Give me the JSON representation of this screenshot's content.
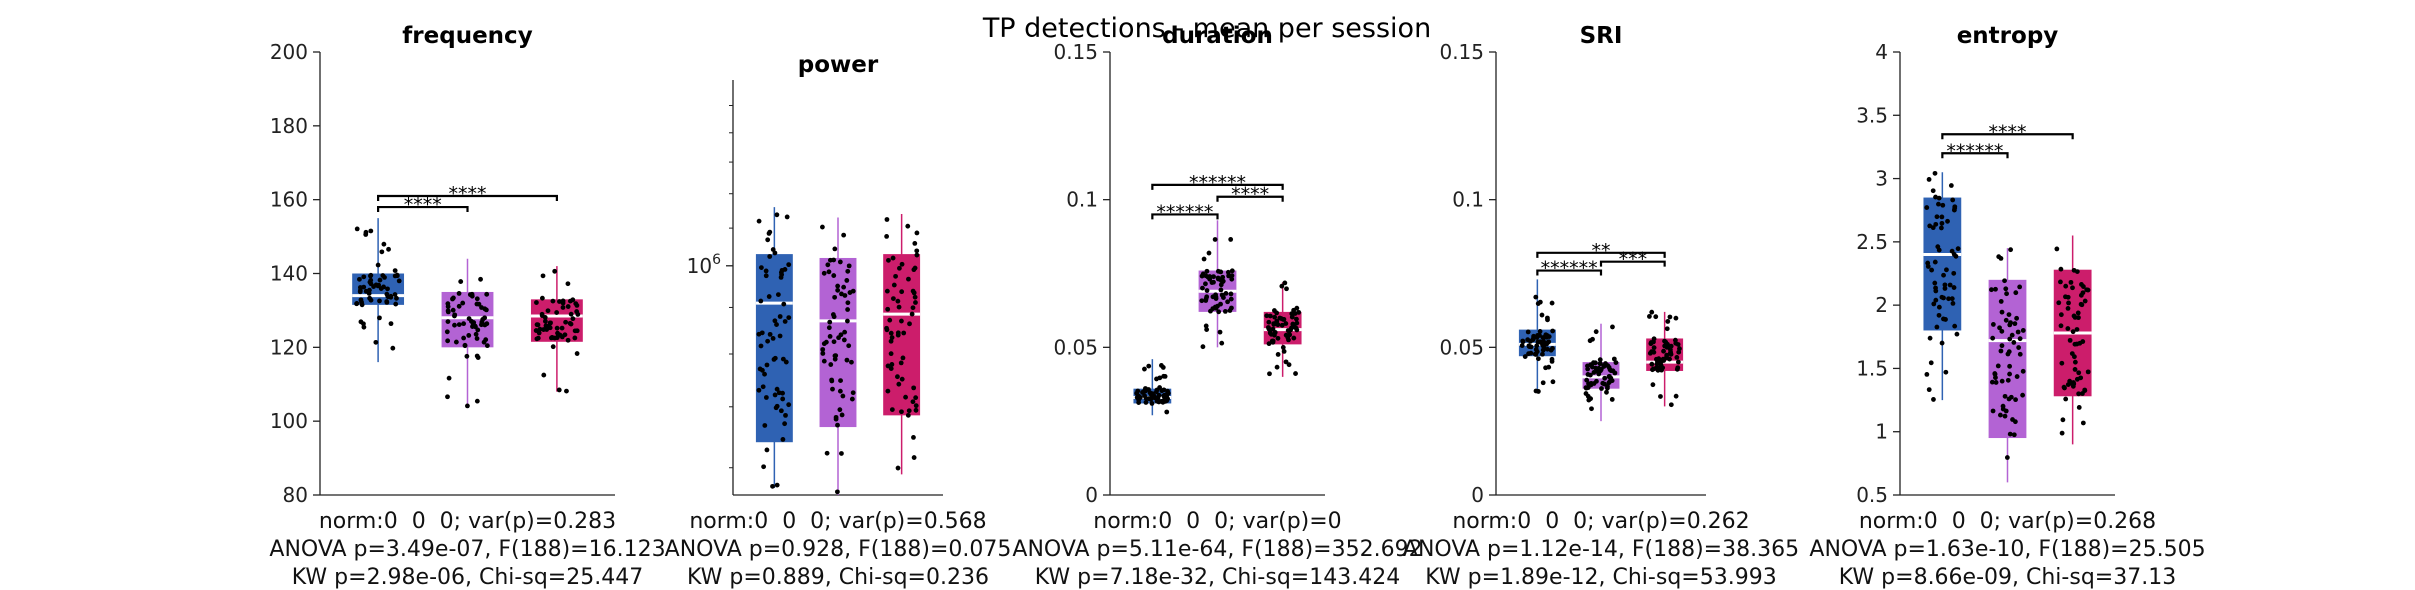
{
  "figure_title": "TP detections - mean per session",
  "colors": {
    "group1": "#2f62b3",
    "group2": "#b363d4",
    "group3": "#cc1d6b",
    "points": "#000000",
    "median": "#ffffff"
  },
  "chart_data": [
    {
      "type": "box",
      "title": "frequency",
      "ylim": [
        80,
        200
      ],
      "yticks": [
        80,
        100,
        120,
        140,
        160,
        180,
        200
      ],
      "ytick_labels": [
        "80",
        "100",
        "120",
        "140",
        "160",
        "180",
        "200"
      ],
      "log_scale": false,
      "groups": [
        {
          "q1": 131.5,
          "median": 134,
          "q3": 140,
          "whisker_low": 116,
          "whisker_high": 155,
          "points_range": [
            116,
            155
          ]
        },
        {
          "q1": 120,
          "median": 128,
          "q3": 135,
          "whisker_low": 104,
          "whisker_high": 144,
          "points_range": [
            104,
            144
          ]
        },
        {
          "q1": 121.5,
          "median": 128.5,
          "q3": 133,
          "whisker_low": 108,
          "whisker_high": 142,
          "points_range": [
            108,
            142
          ]
        }
      ],
      "significance": [
        {
          "from": 0,
          "to": 1,
          "label": "****",
          "y": 158
        },
        {
          "from": 0,
          "to": 2,
          "label": "****",
          "y": 161
        }
      ],
      "stats": [
        "norm:0  0  0; var(p)=0.283",
        "ANOVA p=3.49e-07, F(188)=16.123",
        "KW p=2.98e-06, Chi-sq=25.447"
      ]
    },
    {
      "type": "box",
      "title": "power",
      "ylim": [
        560000,
        1600000
      ],
      "yticks": [
        1000000
      ],
      "ytick_labels": [
        "10^6"
      ],
      "log_scale": true,
      "groups": [
        {
          "q1": 640000,
          "median": 910000,
          "q3": 1030000,
          "whisker_low": 570000,
          "whisker_high": 1160000,
          "points_range": [
            570000,
            1160000
          ]
        },
        {
          "q1": 665000,
          "median": 870000,
          "q3": 1020000,
          "whisker_low": 560000,
          "whisker_high": 1130000,
          "points_range": [
            560000,
            1130000
          ]
        },
        {
          "q1": 685000,
          "median": 885000,
          "q3": 1030000,
          "whisker_low": 590000,
          "whisker_high": 1140000,
          "points_range": [
            590000,
            1140000
          ]
        }
      ],
      "significance": [],
      "stats": [
        "norm:0  0  0; var(p)=0.568",
        "ANOVA p=0.928, F(188)=0.075",
        "KW p=0.889, Chi-sq=0.236"
      ]
    },
    {
      "type": "box",
      "title": "duration",
      "ylim": [
        0,
        0.15
      ],
      "yticks": [
        0,
        0.05,
        0.1,
        0.15
      ],
      "ytick_labels": [
        "0",
        "0.05",
        "0.1",
        "0.15"
      ],
      "log_scale": false,
      "groups": [
        {
          "q1": 0.031,
          "median": 0.033,
          "q3": 0.036,
          "whisker_low": 0.027,
          "whisker_high": 0.046,
          "points_range": [
            0.027,
            0.046
          ]
        },
        {
          "q1": 0.062,
          "median": 0.069,
          "q3": 0.076,
          "whisker_low": 0.05,
          "whisker_high": 0.093,
          "points_range": [
            0.05,
            0.093
          ]
        },
        {
          "q1": 0.051,
          "median": 0.056,
          "q3": 0.062,
          "whisker_low": 0.04,
          "whisker_high": 0.072,
          "points_range": [
            0.04,
            0.072
          ]
        }
      ],
      "significance": [
        {
          "from": 0,
          "to": 1,
          "label": "******",
          "y": 0.095
        },
        {
          "from": 1,
          "to": 2,
          "label": "****",
          "y": 0.101
        },
        {
          "from": 0,
          "to": 2,
          "label": "******",
          "y": 0.105
        }
      ],
      "stats": [
        "norm:0  0  0; var(p)=0",
        "ANOVA p=5.11e-64, F(188)=352.692",
        "KW p=7.18e-32, Chi-sq=143.424"
      ]
    },
    {
      "type": "box",
      "title": "SRI",
      "ylim": [
        0,
        0.15
      ],
      "yticks": [
        0,
        0.05,
        0.1,
        0.15
      ],
      "ytick_labels": [
        "0",
        "0.05",
        "0.1",
        "0.15"
      ],
      "log_scale": false,
      "groups": [
        {
          "q1": 0.047,
          "median": 0.051,
          "q3": 0.056,
          "whisker_low": 0.035,
          "whisker_high": 0.073,
          "points_range": [
            0.035,
            0.073
          ]
        },
        {
          "q1": 0.036,
          "median": 0.04,
          "q3": 0.045,
          "whisker_low": 0.025,
          "whisker_high": 0.058,
          "points_range": [
            0.025,
            0.058
          ]
        },
        {
          "q1": 0.042,
          "median": 0.045,
          "q3": 0.053,
          "whisker_low": 0.03,
          "whisker_high": 0.062,
          "points_range": [
            0.03,
            0.062
          ]
        }
      ],
      "significance": [
        {
          "from": 0,
          "to": 1,
          "label": "******",
          "y": 0.076
        },
        {
          "from": 1,
          "to": 2,
          "label": "***",
          "y": 0.079
        },
        {
          "from": 0,
          "to": 2,
          "label": "**",
          "y": 0.082
        }
      ],
      "stats": [
        "norm:0  0  0; var(p)=0.262",
        "ANOVA p=1.12e-14, F(188)=38.365",
        "KW p=1.89e-12, Chi-sq=53.993"
      ]
    },
    {
      "type": "box",
      "title": "entropy",
      "ylim": [
        0.5,
        4
      ],
      "yticks": [
        0.5,
        1,
        1.5,
        2,
        2.5,
        3,
        3.5,
        4
      ],
      "ytick_labels": [
        "0.5",
        "1",
        "1.5",
        "2",
        "2.5",
        "3",
        "3.5",
        "4"
      ],
      "log_scale": false,
      "groups": [
        {
          "q1": 1.8,
          "median": 2.4,
          "q3": 2.85,
          "whisker_low": 1.25,
          "whisker_high": 3.05,
          "points_range": [
            1.25,
            3.05
          ]
        },
        {
          "q1": 0.95,
          "median": 1.72,
          "q3": 2.2,
          "whisker_low": 0.6,
          "whisker_high": 2.45,
          "points_range": [
            0.6,
            2.45
          ]
        },
        {
          "q1": 1.28,
          "median": 1.78,
          "q3": 2.28,
          "whisker_low": 0.9,
          "whisker_high": 2.55,
          "points_range": [
            0.9,
            2.55
          ]
        }
      ],
      "significance": [
        {
          "from": 0,
          "to": 1,
          "label": "******",
          "y": 3.2
        },
        {
          "from": 0,
          "to": 2,
          "label": "****",
          "y": 3.35
        }
      ],
      "stats": [
        "norm:0  0  0; var(p)=0.268",
        "ANOVA p=1.63e-10, F(188)=25.505",
        "KW p=8.66e-09, Chi-sq=37.13"
      ]
    }
  ]
}
